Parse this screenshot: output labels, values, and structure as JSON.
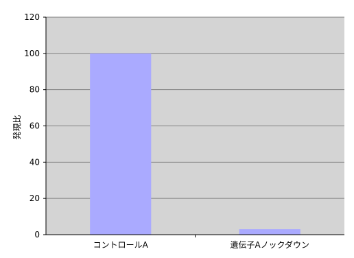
{
  "chart_data": {
    "type": "bar",
    "categories": [
      "コントロールA",
      "遺伝子Aノックダウン"
    ],
    "values": [
      100,
      3
    ],
    "title": "",
    "xlabel": "",
    "ylabel": "発現比",
    "ylim": [
      0,
      120
    ],
    "yticks": [
      0,
      20,
      40,
      60,
      80,
      100,
      120
    ],
    "grid": true,
    "legend": "none",
    "colors": {
      "bar": "#aaaaff",
      "plot_background": "#d4d4d4",
      "gridline": "#808080",
      "axis": "#000000"
    }
  }
}
